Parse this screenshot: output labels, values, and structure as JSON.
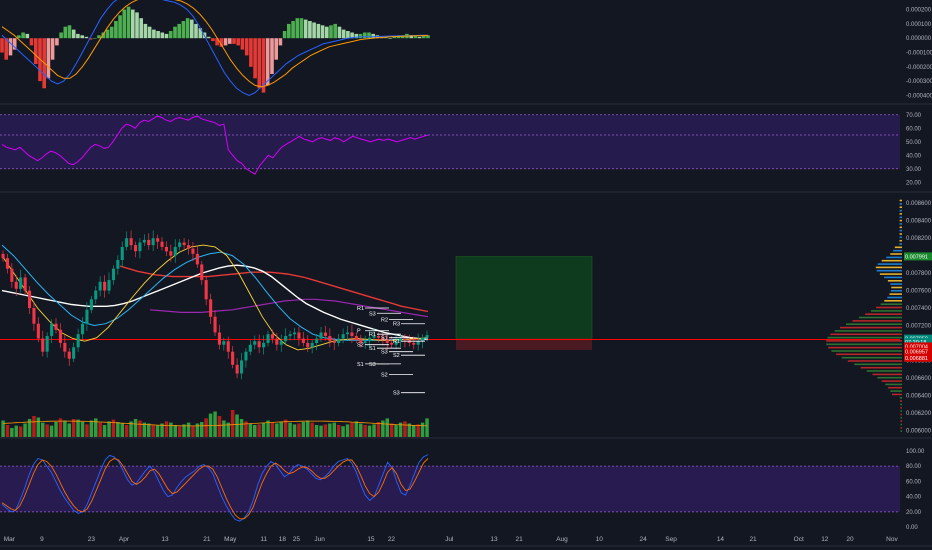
{
  "colors": {
    "background": "#131722",
    "grid": "#1e222d",
    "axis_text": "#b2b5be",
    "bull": "#089981",
    "bear": "#f23645",
    "vol_bull": "#2e9e3e",
    "vol_bear": "#b71c1c",
    "macd_line": "#2962ff",
    "signal_line": "#ff9800",
    "rsi_line": "#d500f9",
    "band_fill": "#2a1c55",
    "price_line": "#ff0000",
    "target_zone": "#0e3a1e",
    "stop_zone": "#4a1a22"
  },
  "macd": {
    "axis_ticks": [
      "0.000200",
      "0.000100",
      "0.000000",
      "-0.000100",
      "-0.000200",
      "-0.000300",
      "-0.000400"
    ],
    "hist_series": [
      -0.1,
      -0.15,
      -0.12,
      -0.08,
      0.02,
      0.04,
      0.03,
      -0.05,
      -0.18,
      -0.3,
      -0.35,
      -0.28,
      -0.15,
      -0.05,
      0.04,
      0.08,
      0.09,
      0.06,
      0.03,
      0.02,
      0.01,
      -0.01,
      0.0,
      0.02,
      0.04,
      0.06,
      0.08,
      0.12,
      0.16,
      0.2,
      0.22,
      0.2,
      0.18,
      0.14,
      0.1,
      0.08,
      0.06,
      0.05,
      0.04,
      0.03,
      0.05,
      0.08,
      0.1,
      0.12,
      0.14,
      0.13,
      0.1,
      0.07,
      0.04,
      0.01,
      -0.02,
      -0.05,
      -0.06,
      -0.05,
      -0.04,
      -0.04,
      -0.05,
      -0.08,
      -0.12,
      -0.2,
      -0.28,
      -0.35,
      -0.38,
      -0.33,
      -0.25,
      -0.15,
      -0.05,
      0.05,
      0.1,
      0.12,
      0.14,
      0.14,
      0.13,
      0.12,
      0.11,
      0.1,
      0.09,
      0.08,
      0.09,
      0.1,
      0.08,
      0.06,
      0.05,
      0.04,
      0.03,
      0.03,
      0.04,
      0.04,
      0.03,
      0.02,
      0.01,
      0.01,
      0.0,
      0.01,
      0.02,
      0.02,
      0.03,
      0.02,
      0.02,
      0.01,
      0.02,
      0.02
    ],
    "macd_series": [
      0.02,
      -0.02,
      -0.06,
      -0.1,
      -0.14,
      -0.18,
      -0.22,
      -0.26,
      -0.3,
      -0.32,
      -0.3,
      -0.25,
      -0.18,
      -0.1,
      -0.02,
      0.06,
      0.14,
      0.2,
      0.25,
      0.28,
      0.3,
      0.31,
      0.31,
      0.3,
      0.29,
      0.28,
      0.27,
      0.26,
      0.25,
      0.23,
      0.2,
      0.15,
      0.08,
      0.0,
      -0.08,
      -0.16,
      -0.24,
      -0.3,
      -0.35,
      -0.38,
      -0.4,
      -0.38,
      -0.34,
      -0.3,
      -0.26,
      -0.22,
      -0.18,
      -0.15,
      -0.12,
      -0.1,
      -0.08,
      -0.06,
      -0.04,
      -0.03,
      -0.02,
      -0.01,
      0.0,
      0.005,
      0.01,
      0.01,
      0.01,
      0.012,
      0.014,
      0.015,
      0.016,
      0.017,
      0.018,
      0.019,
      0.02,
      0.021
    ],
    "signal_series": [
      0.08,
      0.05,
      0.02,
      -0.02,
      -0.06,
      -0.1,
      -0.14,
      -0.18,
      -0.22,
      -0.26,
      -0.28,
      -0.28,
      -0.25,
      -0.2,
      -0.14,
      -0.07,
      0.0,
      0.07,
      0.13,
      0.18,
      0.22,
      0.25,
      0.27,
      0.28,
      0.29,
      0.29,
      0.29,
      0.28,
      0.27,
      0.26,
      0.24,
      0.21,
      0.17,
      0.12,
      0.06,
      -0.01,
      -0.08,
      -0.15,
      -0.21,
      -0.26,
      -0.3,
      -0.33,
      -0.34,
      -0.33,
      -0.31,
      -0.28,
      -0.25,
      -0.21,
      -0.18,
      -0.15,
      -0.12,
      -0.1,
      -0.08,
      -0.06,
      -0.05,
      -0.04,
      -0.03,
      -0.02,
      -0.01,
      -0.005,
      0.0,
      0.004,
      0.007,
      0.01,
      0.012,
      0.014,
      0.016,
      0.017,
      0.018,
      0.019
    ]
  },
  "rsi": {
    "axis_ticks": [
      "70.00",
      "60.00",
      "50.00",
      "40.00",
      "30.00",
      "20.00"
    ],
    "upper_band": 70,
    "lower_band": 30,
    "midline": 55,
    "series": [
      48,
      46,
      45,
      44,
      46,
      43,
      40,
      38,
      36,
      38,
      41,
      43,
      42,
      40,
      37,
      34,
      33,
      35,
      38,
      42,
      46,
      48,
      47,
      45,
      46,
      50,
      55,
      60,
      63,
      62,
      60,
      64,
      66,
      65,
      67,
      69,
      68,
      66,
      65,
      67,
      68,
      67,
      66,
      68,
      69,
      67,
      66,
      65,
      64,
      62,
      63,
      44,
      40,
      36,
      34,
      30,
      28,
      26,
      32,
      36,
      40,
      38,
      42,
      46,
      48,
      50,
      52,
      54,
      52,
      51,
      50,
      52,
      53,
      52,
      51,
      53,
      52,
      50,
      52,
      54,
      53,
      52,
      51,
      50,
      51,
      52,
      51,
      52,
      51,
      50,
      51,
      52,
      53,
      52,
      53,
      54,
      55
    ],
    "min": 15,
    "max": 75
  },
  "price": {
    "axis_ticks": [
      "0.008600",
      "0.008400",
      "0.008200",
      "0.008000",
      "0.007800",
      "0.007600",
      "0.007400",
      "0.007200",
      "0.007000",
      "0.006800",
      "0.006600",
      "0.006400",
      "0.006200",
      "0.006000"
    ],
    "min": 0.00598,
    "max": 0.00866,
    "closes": [
      0.00797,
      0.00785,
      0.0077,
      0.00762,
      0.00775,
      0.0076,
      0.0074,
      0.00722,
      0.00705,
      0.0069,
      0.00708,
      0.00722,
      0.00715,
      0.007,
      0.0069,
      0.00682,
      0.00695,
      0.0071,
      0.00722,
      0.00738,
      0.0075,
      0.0076,
      0.0077,
      0.0076,
      0.00772,
      0.00785,
      0.00795,
      0.0081,
      0.0082,
      0.00812,
      0.00805,
      0.00815,
      0.00818,
      0.00812,
      0.0082,
      0.00816,
      0.0081,
      0.00805,
      0.008,
      0.0081,
      0.00815,
      0.00812,
      0.00808,
      0.00802,
      0.0079,
      0.00772,
      0.0075,
      0.0073,
      0.00712,
      0.00698,
      0.00702,
      0.0069,
      0.00675,
      0.00665,
      0.0068,
      0.0069,
      0.00698,
      0.00702,
      0.00695,
      0.007,
      0.0071,
      0.00705,
      0.00698,
      0.00702,
      0.00708,
      0.0071,
      0.00712,
      0.00705,
      0.007,
      0.00695,
      0.007,
      0.00705,
      0.00712,
      0.00708,
      0.00702,
      0.007,
      0.00705,
      0.0071,
      0.00712,
      0.00708,
      0.00704,
      0.007,
      0.00702,
      0.00706,
      0.00708,
      0.00706,
      0.00704,
      0.007,
      0.00698,
      0.00702,
      0.00705,
      0.00703,
      0.007,
      0.00698,
      0.00702,
      0.00706,
      0.00709
    ],
    "ma_white": [
      0.0076,
      0.00758,
      0.00756,
      0.00754,
      0.00752,
      0.0075,
      0.00748,
      0.00746,
      0.00744,
      0.00743,
      0.00742,
      0.00742,
      0.00742,
      0.00743,
      0.00745,
      0.00748,
      0.00752,
      0.00756,
      0.0076,
      0.00764,
      0.00768,
      0.00772,
      0.00776,
      0.0078,
      0.00783,
      0.00786,
      0.00788,
      0.00789,
      0.00788,
      0.00786,
      0.00782,
      0.00776,
      0.00768,
      0.0076,
      0.00752,
      0.00745,
      0.0074,
      0.00735,
      0.00731,
      0.00727,
      0.00724,
      0.00721,
      0.00718,
      0.00715,
      0.00712,
      0.0071,
      0.00708,
      0.00706,
      0.00705,
      0.00704
    ],
    "ma_red": [
      0.00788,
      0.00785,
      0.00782,
      0.0078,
      0.00778,
      0.00777,
      0.00776,
      0.00776,
      0.00776,
      0.00776,
      0.00776,
      0.00777,
      0.00778,
      0.00779,
      0.0078,
      0.00781,
      0.00781,
      0.00781,
      0.0078,
      0.00779,
      0.00777,
      0.00775,
      0.00772,
      0.00769,
      0.00766,
      0.00763,
      0.0076,
      0.00757,
      0.00754,
      0.00751,
      0.00748,
      0.00745,
      0.00742,
      0.0074,
      0.00738,
      0.00736
    ],
    "ma_purple": [
      0.00738,
      0.00737,
      0.00736,
      0.00735,
      0.00735,
      0.00735,
      0.00736,
      0.00737,
      0.00738,
      0.0074,
      0.00742,
      0.00744,
      0.00746,
      0.00748,
      0.00749,
      0.0075,
      0.0075,
      0.00749,
      0.00748,
      0.00746,
      0.00744,
      0.00742,
      0.0074,
      0.00738,
      0.00736,
      0.00734,
      0.00732,
      0.0073
    ],
    "ma_cyan": [
      0.00812,
      0.008,
      0.00785,
      0.0077,
      0.00756,
      0.00744,
      0.00732,
      0.00724,
      0.0072,
      0.00722,
      0.00728,
      0.00738,
      0.0075,
      0.00762,
      0.00774,
      0.00784,
      0.00792,
      0.00798,
      0.00802,
      0.00804,
      0.008,
      0.0079,
      0.00775,
      0.00758,
      0.00742,
      0.00728,
      0.00718,
      0.0071,
      0.00706,
      0.00704,
      0.00703,
      0.00703,
      0.00703,
      0.00703,
      0.00704,
      0.00704,
      0.00705,
      0.00705
    ],
    "ma_yellow": [
      0.008,
      0.0078,
      0.0076,
      0.0074,
      0.00725,
      0.00712,
      0.00705,
      0.00702,
      0.00706,
      0.00718,
      0.00735,
      0.00752,
      0.00768,
      0.00782,
      0.00794,
      0.00804,
      0.0081,
      0.00812,
      0.0081,
      0.008,
      0.0078,
      0.00755,
      0.0073,
      0.0071,
      0.00698,
      0.00692,
      0.00694,
      0.00698,
      0.00702,
      0.00704,
      0.00705,
      0.00704,
      0.00703,
      0.00703,
      0.00704,
      0.00705,
      0.00706
    ],
    "current_price_level": 0.00704,
    "badges": [
      {
        "label": "0.007991",
        "value": 0.007991,
        "color": "#1b8a2e"
      },
      {
        "label": "0.007050",
        "value": 0.00705,
        "color": "#00897b"
      },
      {
        "label": "07:20:18",
        "value": 0.00701,
        "color": "#00897b"
      },
      {
        "label": "0.007004",
        "value": 0.00696,
        "color": "#d50000"
      },
      {
        "label": "0.006957",
        "value": 0.0069,
        "color": "#d50000"
      },
      {
        "label": "0.006881",
        "value": 0.00683,
        "color": "#d50000"
      }
    ],
    "target_zone": {
      "top": 0.00799,
      "bottom": 0.00705
    },
    "stop_zone": {
      "top": 0.00705,
      "bottom": 0.00692
    },
    "pivots": [
      {
        "label": "R1",
        "value": 0.0074
      },
      {
        "label": "S3",
        "value": 0.00734
      },
      {
        "label": "R2",
        "value": 0.00727
      },
      {
        "label": "R3",
        "value": 0.00722
      },
      {
        "label": "P",
        "value": 0.00714
      },
      {
        "label": "R1",
        "value": 0.0071
      },
      {
        "label": "S1",
        "value": 0.00706
      },
      {
        "label": "R1",
        "value": 0.00702
      },
      {
        "label": "S2",
        "value": 0.00698
      },
      {
        "label": "S1",
        "value": 0.00694
      },
      {
        "label": "S3",
        "value": 0.0069
      },
      {
        "label": "S2",
        "value": 0.00686
      },
      {
        "label": "S1",
        "value": 0.00676
      },
      {
        "label": "S3",
        "value": 0.00676
      },
      {
        "label": "S2",
        "value": 0.00664
      },
      {
        "label": "S3",
        "value": 0.00643
      }
    ]
  },
  "volume": {
    "bars": [
      0.55,
      0.4,
      0.3,
      0.38,
      0.35,
      0.45,
      0.6,
      0.7,
      0.65,
      0.48,
      0.42,
      0.38,
      0.5,
      0.62,
      0.55,
      0.45,
      0.6,
      0.58,
      0.5,
      0.42,
      0.55,
      0.62,
      0.48,
      0.4,
      0.52,
      0.58,
      0.5,
      0.45,
      0.4,
      0.52,
      0.6,
      0.55,
      0.48,
      0.45,
      0.42,
      0.4,
      0.45,
      0.52,
      0.48,
      0.4,
      0.35,
      0.42,
      0.48,
      0.38,
      0.45,
      0.5,
      0.62,
      0.78,
      0.85,
      0.7,
      0.55,
      0.48,
      0.9,
      0.75,
      0.6,
      0.52,
      0.45,
      0.4,
      0.42,
      0.48,
      0.55,
      0.5,
      0.45,
      0.52,
      0.58,
      0.48,
      0.42,
      0.45,
      0.5,
      0.55,
      0.48,
      0.4,
      0.38,
      0.42,
      0.45,
      0.48,
      0.4,
      0.36,
      0.42,
      0.48,
      0.52,
      0.45,
      0.4,
      0.38,
      0.42,
      0.5,
      0.55,
      0.62,
      0.45,
      0.4,
      0.48,
      0.52,
      0.45,
      0.4,
      0.42,
      0.48,
      0.62
    ]
  },
  "stoch": {
    "axis_ticks": [
      "100.00",
      "80.00",
      "60.00",
      "40.00",
      "20.00",
      "0.00"
    ],
    "upper_band": 80,
    "lower_band": 20,
    "k_series": [
      30,
      25,
      20,
      22,
      35,
      50,
      68,
      82,
      90,
      88,
      80,
      72,
      60,
      48,
      38,
      30,
      22,
      18,
      20,
      30,
      45,
      60,
      75,
      88,
      94,
      92,
      86,
      74,
      62,
      55,
      58,
      66,
      74,
      80,
      72,
      60,
      48,
      40,
      42,
      52,
      60,
      66,
      70,
      74,
      80,
      82,
      78,
      70,
      55,
      40,
      28,
      18,
      10,
      8,
      12,
      20,
      35,
      55,
      70,
      80,
      86,
      82,
      74,
      66,
      70,
      78,
      82,
      80,
      76,
      70,
      64,
      62,
      66,
      72,
      80,
      86,
      88,
      90,
      84,
      72,
      56,
      42,
      35,
      40,
      55,
      70,
      85,
      78,
      60,
      45,
      42,
      55,
      70,
      85,
      92,
      95
    ],
    "d_series": [
      32,
      28,
      24,
      22,
      28,
      40,
      55,
      70,
      82,
      88,
      86,
      80,
      70,
      58,
      46,
      36,
      28,
      22,
      20,
      24,
      34,
      48,
      62,
      76,
      86,
      90,
      88,
      80,
      70,
      60,
      56,
      60,
      66,
      74,
      76,
      70,
      60,
      50,
      44,
      46,
      52,
      58,
      64,
      70,
      76,
      80,
      80,
      76,
      66,
      52,
      38,
      26,
      16,
      11,
      11,
      16,
      26,
      42,
      58,
      70,
      80,
      84,
      80,
      74,
      70,
      72,
      76,
      79,
      78,
      74,
      68,
      64,
      64,
      68,
      74,
      80,
      85,
      88,
      88,
      80,
      68,
      54,
      44,
      40,
      46,
      58,
      72,
      78,
      70,
      56,
      48,
      50,
      60,
      72,
      84,
      90
    ]
  },
  "time_axis": {
    "ticks": [
      "Mar",
      "9",
      "23",
      "Apr",
      "13",
      "21",
      "May",
      "11",
      "18",
      "25",
      "Jun",
      "15",
      "22",
      "Jul",
      "13",
      "21",
      "Aug",
      "10",
      "24",
      "Sep",
      "14",
      "21",
      "Oct",
      "12",
      "20",
      "Nov"
    ],
    "positions": [
      0.01,
      0.045,
      0.098,
      0.133,
      0.177,
      0.222,
      0.247,
      0.283,
      0.303,
      0.318,
      0.343,
      0.398,
      0.42,
      0.482,
      0.53,
      0.557,
      0.603,
      0.643,
      0.69,
      0.72,
      0.773,
      0.808,
      0.857,
      0.885,
      0.912,
      0.957
    ]
  }
}
